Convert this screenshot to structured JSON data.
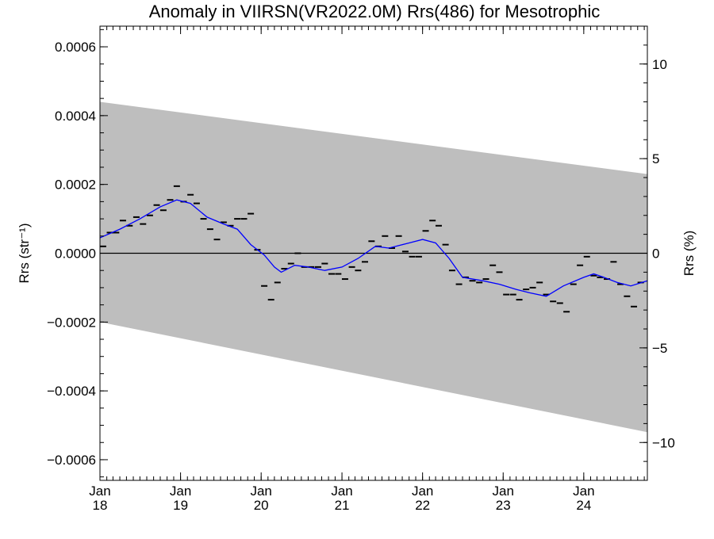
{
  "chart_data": {
    "type": "line",
    "title": "Anomaly in VIIRSN(VR2022.0M) Rrs(486) for Mesotrophic",
    "ylabel_left": "Rrs (str⁻¹)",
    "ylabel_right": "Rrs (%)",
    "xlabel": "",
    "x_range": [
      "2018-01-01",
      "2024-10-15"
    ],
    "ylim_left": [
      -0.00066,
      0.00066
    ],
    "ylim_right": [
      -12,
      12
    ],
    "y_ticks_left": [
      {
        "value": 0.0006,
        "label": "0.0006"
      },
      {
        "value": 0.0004,
        "label": "0.0004"
      },
      {
        "value": 0.0002,
        "label": "0.0002"
      },
      {
        "value": 0.0,
        "label": "0.0000"
      },
      {
        "value": -0.0002,
        "label": "−0.0002"
      },
      {
        "value": -0.0004,
        "label": "−0.0004"
      },
      {
        "value": -0.0006,
        "label": "−0.0006"
      }
    ],
    "y_ticks_right": [
      {
        "value": 10,
        "label": "10"
      },
      {
        "value": 5,
        "label": "5"
      },
      {
        "value": 0,
        "label": "0"
      },
      {
        "value": -5,
        "label": "−5"
      },
      {
        "value": -10,
        "label": "−10"
      }
    ],
    "x_ticks": [
      {
        "x": "2018-01-01",
        "month": "Jan",
        "year": "18"
      },
      {
        "x": "2019-01-01",
        "month": "Jan",
        "year": "19"
      },
      {
        "x": "2020-01-01",
        "month": "Jan",
        "year": "20"
      },
      {
        "x": "2021-01-01",
        "month": "Jan",
        "year": "21"
      },
      {
        "x": "2022-01-01",
        "month": "Jan",
        "year": "22"
      },
      {
        "x": "2023-01-01",
        "month": "Jan",
        "year": "23"
      },
      {
        "x": "2024-01-01",
        "month": "Jan",
        "year": "24"
      }
    ],
    "band": {
      "color": "#bebebe",
      "x": [
        "2018-01-01",
        "2024-10-15"
      ],
      "upper": [
        0.00044,
        0.00023
      ],
      "lower": [
        -0.0002,
        -0.00052
      ]
    },
    "zero_line": 0,
    "series": [
      {
        "kind": "monthly_markers",
        "color": "#000000",
        "points": [
          {
            "x": "2018-01-15",
            "y": 2e-05
          },
          {
            "x": "2018-02-15",
            "y": 6e-05
          },
          {
            "x": "2018-03-15",
            "y": 6e-05
          },
          {
            "x": "2018-04-15",
            "y": 9.5e-05
          },
          {
            "x": "2018-05-15",
            "y": 8e-05
          },
          {
            "x": "2018-06-15",
            "y": 0.000105
          },
          {
            "x": "2018-07-15",
            "y": 8.5e-05
          },
          {
            "x": "2018-08-15",
            "y": 0.00011
          },
          {
            "x": "2018-09-15",
            "y": 0.00014
          },
          {
            "x": "2018-10-15",
            "y": 0.000125
          },
          {
            "x": "2018-11-15",
            "y": 0.000155
          },
          {
            "x": "2018-12-15",
            "y": 0.000195
          },
          {
            "x": "2019-01-15",
            "y": 0.00015
          },
          {
            "x": "2019-02-15",
            "y": 0.00017
          },
          {
            "x": "2019-03-15",
            "y": 0.000145
          },
          {
            "x": "2019-04-15",
            "y": 0.0001
          },
          {
            "x": "2019-05-15",
            "y": 7e-05
          },
          {
            "x": "2019-06-15",
            "y": 4e-05
          },
          {
            "x": "2019-07-15",
            "y": 9e-05
          },
          {
            "x": "2019-08-15",
            "y": 8e-05
          },
          {
            "x": "2019-09-15",
            "y": 0.0001
          },
          {
            "x": "2019-10-15",
            "y": 0.0001
          },
          {
            "x": "2019-11-15",
            "y": 0.000115
          },
          {
            "x": "2019-12-15",
            "y": 1e-05
          },
          {
            "x": "2020-01-15",
            "y": -9.5e-05
          },
          {
            "x": "2020-02-15",
            "y": -0.000135
          },
          {
            "x": "2020-03-15",
            "y": -8.5e-05
          },
          {
            "x": "2020-04-15",
            "y": -4.5e-05
          },
          {
            "x": "2020-05-15",
            "y": -3e-05
          },
          {
            "x": "2020-06-15",
            "y": 0.0
          },
          {
            "x": "2020-07-15",
            "y": -4e-05
          },
          {
            "x": "2020-08-15",
            "y": -4e-05
          },
          {
            "x": "2020-09-15",
            "y": -4e-05
          },
          {
            "x": "2020-10-15",
            "y": -3e-05
          },
          {
            "x": "2020-11-15",
            "y": -6e-05
          },
          {
            "x": "2020-12-15",
            "y": -6e-05
          },
          {
            "x": "2021-01-15",
            "y": -7.5e-05
          },
          {
            "x": "2021-02-15",
            "y": -4e-05
          },
          {
            "x": "2021-03-15",
            "y": -5e-05
          },
          {
            "x": "2021-04-15",
            "y": -2.5e-05
          },
          {
            "x": "2021-05-15",
            "y": 3.5e-05
          },
          {
            "x": "2021-06-15",
            "y": 2e-05
          },
          {
            "x": "2021-07-15",
            "y": 5e-05
          },
          {
            "x": "2021-08-15",
            "y": 1.5e-05
          },
          {
            "x": "2021-09-15",
            "y": 5e-05
          },
          {
            "x": "2021-10-15",
            "y": 5e-06
          },
          {
            "x": "2021-11-15",
            "y": -1e-05
          },
          {
            "x": "2021-12-15",
            "y": -1e-05
          },
          {
            "x": "2022-01-15",
            "y": 6.5e-05
          },
          {
            "x": "2022-02-15",
            "y": 9.5e-05
          },
          {
            "x": "2022-03-15",
            "y": 8e-05
          },
          {
            "x": "2022-04-15",
            "y": 2.5e-05
          },
          {
            "x": "2022-05-15",
            "y": -5e-05
          },
          {
            "x": "2022-06-15",
            "y": -9e-05
          },
          {
            "x": "2022-07-15",
            "y": -7e-05
          },
          {
            "x": "2022-08-15",
            "y": -8e-05
          },
          {
            "x": "2022-09-15",
            "y": -8.5e-05
          },
          {
            "x": "2022-10-15",
            "y": -7.5e-05
          },
          {
            "x": "2022-11-15",
            "y": -3.5e-05
          },
          {
            "x": "2022-12-15",
            "y": -5.5e-05
          },
          {
            "x": "2023-01-15",
            "y": -0.00012
          },
          {
            "x": "2023-02-15",
            "y": -0.00012
          },
          {
            "x": "2023-03-15",
            "y": -0.000135
          },
          {
            "x": "2023-04-15",
            "y": -0.000105
          },
          {
            "x": "2023-05-15",
            "y": -0.0001
          },
          {
            "x": "2023-06-15",
            "y": -8.5e-05
          },
          {
            "x": "2023-07-15",
            "y": -0.00012
          },
          {
            "x": "2023-08-15",
            "y": -0.00014
          },
          {
            "x": "2023-09-15",
            "y": -0.000145
          },
          {
            "x": "2023-10-15",
            "y": -0.00017
          },
          {
            "x": "2023-11-15",
            "y": -9e-05
          },
          {
            "x": "2023-12-15",
            "y": -3.5e-05
          },
          {
            "x": "2024-01-15",
            "y": -1e-05
          },
          {
            "x": "2024-02-15",
            "y": -6.5e-05
          },
          {
            "x": "2024-03-15",
            "y": -7e-05
          },
          {
            "x": "2024-04-15",
            "y": -7.5e-05
          },
          {
            "x": "2024-05-15",
            "y": -2.5e-05
          },
          {
            "x": "2024-06-15",
            "y": -9e-05
          },
          {
            "x": "2024-07-15",
            "y": -0.000125
          },
          {
            "x": "2024-08-15",
            "y": -0.000155
          },
          {
            "x": "2024-09-15",
            "y": -8.5e-05
          }
        ]
      },
      {
        "kind": "running_mean",
        "color": "#0000ff",
        "points": [
          {
            "x": "2018-01-01",
            "y": 4.5e-05
          },
          {
            "x": "2018-04-01",
            "y": 7e-05
          },
          {
            "x": "2018-07-01",
            "y": 0.0001
          },
          {
            "x": "2018-10-01",
            "y": 0.000135
          },
          {
            "x": "2018-12-15",
            "y": 0.000155
          },
          {
            "x": "2019-02-15",
            "y": 0.000145
          },
          {
            "x": "2019-05-01",
            "y": 0.000105
          },
          {
            "x": "2019-07-15",
            "y": 8.5e-05
          },
          {
            "x": "2019-09-15",
            "y": 7e-05
          },
          {
            "x": "2019-11-15",
            "y": 2.5e-05
          },
          {
            "x": "2020-01-15",
            "y": -5e-06
          },
          {
            "x": "2020-03-01",
            "y": -4e-05
          },
          {
            "x": "2020-04-01",
            "y": -5.5e-05
          },
          {
            "x": "2020-06-01",
            "y": -3.5e-05
          },
          {
            "x": "2020-08-01",
            "y": -4e-05
          },
          {
            "x": "2020-10-15",
            "y": -5e-05
          },
          {
            "x": "2021-01-01",
            "y": -4e-05
          },
          {
            "x": "2021-03-15",
            "y": -1.5e-05
          },
          {
            "x": "2021-06-01",
            "y": 2e-05
          },
          {
            "x": "2021-08-01",
            "y": 1.5e-05
          },
          {
            "x": "2021-11-01",
            "y": 3e-05
          },
          {
            "x": "2022-01-01",
            "y": 4e-05
          },
          {
            "x": "2022-03-01",
            "y": 3e-05
          },
          {
            "x": "2022-05-01",
            "y": -1.5e-05
          },
          {
            "x": "2022-07-01",
            "y": -7e-05
          },
          {
            "x": "2022-10-01",
            "y": -8e-05
          },
          {
            "x": "2022-12-15",
            "y": -9e-05
          },
          {
            "x": "2023-03-01",
            "y": -0.000105
          },
          {
            "x": "2023-05-01",
            "y": -0.000115
          },
          {
            "x": "2023-07-15",
            "y": -0.000125
          },
          {
            "x": "2023-10-01",
            "y": -9.5e-05
          },
          {
            "x": "2024-01-01",
            "y": -7e-05
          },
          {
            "x": "2024-02-15",
            "y": -6e-05
          },
          {
            "x": "2024-04-01",
            "y": -7e-05
          },
          {
            "x": "2024-06-01",
            "y": -8.5e-05
          },
          {
            "x": "2024-08-01",
            "y": -9.5e-05
          },
          {
            "x": "2024-10-15",
            "y": -8e-05
          }
        ]
      }
    ],
    "grid": false,
    "legend": "none"
  }
}
